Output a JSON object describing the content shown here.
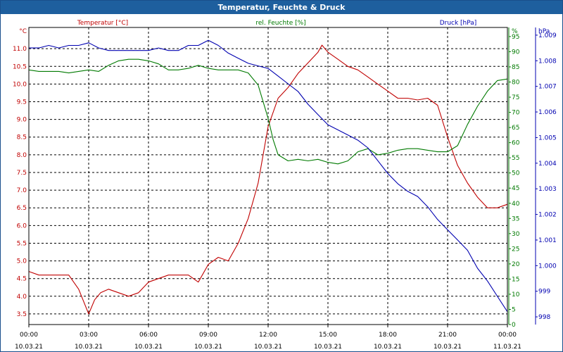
{
  "window": {
    "title": "Temperatur, Feuchte & Druck"
  },
  "colors": {
    "temperature": "#c00000",
    "humidity": "#007a00",
    "pressure": "#0000b0",
    "grid": "#000000",
    "axis": "#000000"
  },
  "chart_data": {
    "type": "line",
    "title": "Temperatur, Feuchte & Druck",
    "xlabel": "",
    "x_ticks": [
      {
        "time": "00:00",
        "date": "10.03.21"
      },
      {
        "time": "03:00",
        "date": "10.03.21"
      },
      {
        "time": "06:00",
        "date": "10.03.21"
      },
      {
        "time": "09:00",
        "date": "10.03.21"
      },
      {
        "time": "12:00",
        "date": "10.03.21"
      },
      {
        "time": "15:00",
        "date": "10.03.21"
      },
      {
        "time": "18:00",
        "date": "10.03.21"
      },
      {
        "time": "21:00",
        "date": "10.03.21"
      },
      {
        "time": "00:00",
        "date": "11.03.21"
      }
    ],
    "xlim": [
      0,
      24
    ],
    "axes": {
      "temperature": {
        "unit": "°C",
        "label": "Temperatur [°C]",
        "range": [
          3.2,
          11.6
        ],
        "ticks": [
          "3.5",
          "4.0",
          "4.5",
          "5.0",
          "5.5",
          "6.0",
          "6.5",
          "7.0",
          "7.5",
          "8.0",
          "8.5",
          "9.0",
          "9.5",
          "10.0",
          "10.5",
          "11.0"
        ]
      },
      "humidity": {
        "unit": "%",
        "label": "rel. Feuchte [%]",
        "range": [
          0,
          98
        ],
        "ticks": [
          "0",
          "5",
          "10",
          "15",
          "20",
          "25",
          "30",
          "35",
          "40",
          "45",
          "50",
          "55",
          "60",
          "65",
          "70",
          "75",
          "80",
          "85",
          "90",
          "95"
        ]
      },
      "pressure": {
        "unit": "hPa",
        "label": "Druck [hPa]",
        "range": [
          997.7,
          1009.3
        ],
        "ticks": [
          "998",
          "999",
          "1.000",
          "1.001",
          "1.002",
          "1.003",
          "1.004",
          "1.005",
          "1.006",
          "1.007",
          "1.008",
          "1.009"
        ]
      }
    },
    "series": [
      {
        "name": "Temperatur [°C]",
        "axis": "temperature",
        "color": "#c00000",
        "x": [
          0,
          0.5,
          1,
          1.5,
          2,
          2.5,
          3,
          3.3,
          3.6,
          4,
          4.5,
          5,
          5.5,
          6,
          6.5,
          7,
          7.5,
          8,
          8.5,
          9,
          9.5,
          10,
          10.5,
          11,
          11.5,
          12,
          12.5,
          13,
          13.5,
          14,
          14.5,
          14.7,
          15,
          15.5,
          16,
          16.5,
          17,
          17.5,
          18,
          18.5,
          19,
          19.5,
          20,
          20.5,
          21,
          21.5,
          22,
          22.5,
          23,
          23.5,
          24
        ],
        "values": [
          4.7,
          4.6,
          4.6,
          4.6,
          4.6,
          4.2,
          3.5,
          3.9,
          4.1,
          4.2,
          4.1,
          4.0,
          4.1,
          4.4,
          4.5,
          4.6,
          4.6,
          4.6,
          4.4,
          4.9,
          5.1,
          5.0,
          5.5,
          6.2,
          7.2,
          8.8,
          9.6,
          9.9,
          10.3,
          10.6,
          10.9,
          11.1,
          10.9,
          10.7,
          10.5,
          10.4,
          10.2,
          10.0,
          9.8,
          9.6,
          9.6,
          9.55,
          9.6,
          9.4,
          8.5,
          7.7,
          7.2,
          6.8,
          6.5,
          6.5,
          6.6
        ]
      },
      {
        "name": "rel. Feuchte [%]",
        "axis": "humidity",
        "color": "#007a00",
        "x": [
          0,
          0.5,
          1,
          1.5,
          2,
          2.5,
          3,
          3.5,
          4,
          4.5,
          5,
          5.5,
          6,
          6.5,
          7,
          7.5,
          8,
          8.5,
          9,
          9.5,
          10,
          10.5,
          11,
          11.5,
          12,
          12.25,
          12.5,
          13,
          13.5,
          14,
          14.5,
          15,
          15.5,
          16,
          16.5,
          17,
          17.5,
          18,
          18.5,
          19,
          19.5,
          20,
          20.5,
          21,
          21.5,
          22,
          22.5,
          23,
          23.5,
          24
        ],
        "values": [
          84,
          83.5,
          83.5,
          83.5,
          83,
          83.5,
          84,
          83.5,
          85.5,
          87,
          87.5,
          87.5,
          87,
          86,
          84,
          84,
          84.5,
          85.5,
          84.5,
          84,
          84,
          84,
          83,
          79,
          68,
          61,
          56,
          54,
          54.5,
          54,
          54.5,
          53.5,
          53,
          54,
          57,
          58,
          56,
          56.5,
          57.5,
          58,
          58,
          57.5,
          57,
          57,
          59,
          66,
          72,
          77,
          80.5,
          81
        ]
      },
      {
        "name": "Druck [hPa]",
        "axis": "pressure",
        "color": "#0000b0",
        "x": [
          0,
          0.5,
          1,
          1.5,
          2,
          2.5,
          3,
          3.5,
          4,
          4.5,
          5,
          5.5,
          6,
          6.5,
          7,
          7.5,
          8,
          8.5,
          9,
          9.5,
          10,
          10.5,
          11,
          11.5,
          12,
          12.5,
          13,
          13.5,
          14,
          14.5,
          15,
          15.5,
          16,
          16.5,
          17,
          17.5,
          18,
          18.5,
          19,
          19.5,
          20,
          20.5,
          21,
          21.5,
          22,
          22.5,
          23,
          23.5,
          24
        ],
        "values": [
          1008.5,
          1008.5,
          1008.6,
          1008.5,
          1008.6,
          1008.6,
          1008.7,
          1008.5,
          1008.4,
          1008.4,
          1008.4,
          1008.4,
          1008.4,
          1008.5,
          1008.4,
          1008.4,
          1008.6,
          1008.6,
          1008.8,
          1008.6,
          1008.3,
          1008.1,
          1007.9,
          1007.8,
          1007.7,
          1007.4,
          1007.1,
          1006.8,
          1006.3,
          1005.9,
          1005.5,
          1005.3,
          1005.1,
          1004.9,
          1004.6,
          1004.1,
          1003.6,
          1003.2,
          1002.9,
          1002.7,
          1002.3,
          1001.8,
          1001.4,
          1001.0,
          1000.6,
          999.9,
          999.4,
          998.8,
          998.2
        ]
      }
    ]
  }
}
